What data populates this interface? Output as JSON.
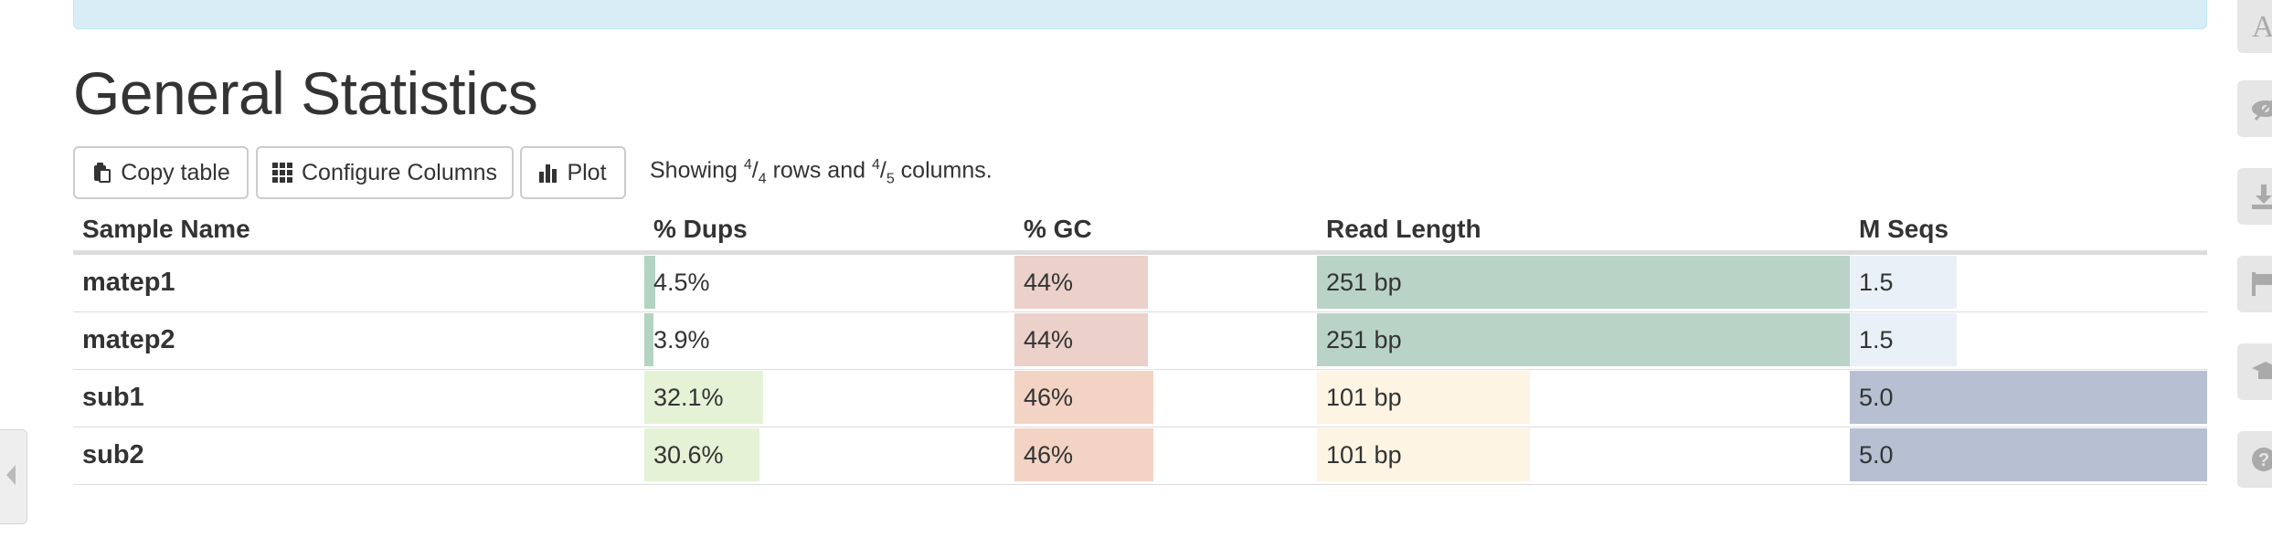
{
  "title": "General Statistics",
  "toolbar": {
    "copy_label": "Copy table",
    "configure_label": "Configure Columns",
    "plot_label": "Plot"
  },
  "showing": {
    "prefix": "Showing ",
    "rows_shown": "4",
    "rows_total": "4",
    "middle": " rows and ",
    "cols_shown": "4",
    "cols_total": "5",
    "suffix": " columns."
  },
  "table": {
    "headers": [
      "Sample Name",
      "% Dups",
      "% GC",
      "Read Length",
      "M Seqs"
    ],
    "rows": [
      {
        "sample": "matep1",
        "dups": "4.5%",
        "gc": "44%",
        "readlen": "251 bp",
        "mseqs": "1.5"
      },
      {
        "sample": "matep2",
        "dups": "3.9%",
        "gc": "44%",
        "readlen": "251 bp",
        "mseqs": "1.5"
      },
      {
        "sample": "sub1",
        "dups": "32.1%",
        "gc": "46%",
        "readlen": "101 bp",
        "mseqs": "5.0"
      },
      {
        "sample": "sub2",
        "dups": "30.6%",
        "gc": "46%",
        "readlen": "101 bp",
        "mseqs": "5.0"
      }
    ]
  },
  "colors": {
    "banner": "#d9edf7",
    "dups_low": "#b3d3c3",
    "dups_high": "#e5f2d6",
    "gc_44": "#ecd0ca",
    "gc_46": "#f2d3c4",
    "readlen_251": "#b9d4c7",
    "readlen_101": "#fdf4e3",
    "mseqs_low": "#e9f0f7",
    "mseqs_high": "#b6c0d2"
  },
  "side_icons": [
    "font-icon",
    "eye-slash-icon",
    "download-icon",
    "flag-icon",
    "graduation-cap-icon",
    "help-icon"
  ]
}
